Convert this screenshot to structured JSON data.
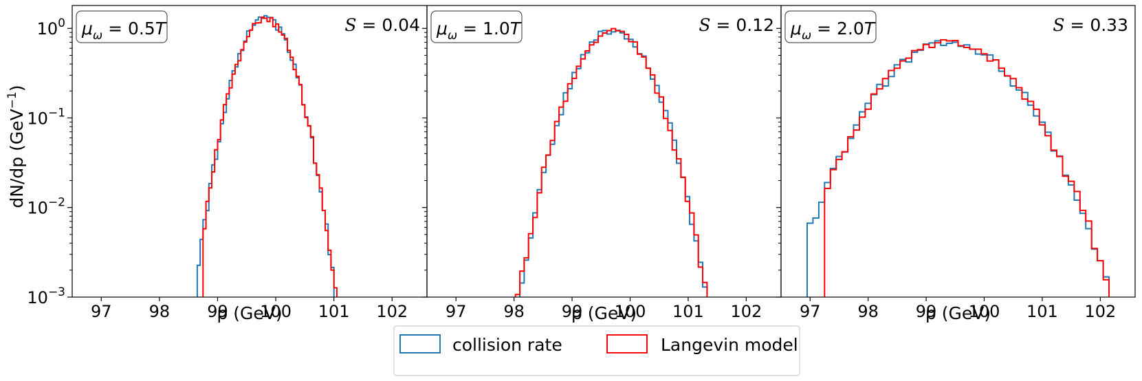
{
  "colors": {
    "collision": "#1f77b4",
    "langevin": "#ff0000",
    "frame": "#000000"
  },
  "shared_ylabel": "dN/dp (GeV",
  "shared_ylabel_sup": "−1",
  "shared_ylabel_close": ")",
  "legend": {
    "placement": "bottom-center",
    "items": [
      {
        "label": "collision rate",
        "color": "#1f77b4"
      },
      {
        "label": "Langevin model",
        "color": "#ff0000"
      }
    ]
  },
  "chart_data": [
    {
      "type": "histogram",
      "panel_label": "μω = 0.5T",
      "label_symbol": "μ",
      "label_sub": "ω",
      "label_value": " = 0.5",
      "label_unit": "T",
      "stat_symbol": "𝒮",
      "stat_value": " = 0.04",
      "xlabel": "p (GeV)",
      "ylabel": "dN/dp (GeV⁻¹)",
      "yscale": "log",
      "xlim": [
        96.5,
        102.6
      ],
      "ylim": [
        0.001,
        1.8
      ],
      "xticks": [
        "97",
        "98",
        "99",
        "100",
        "101",
        "102"
      ],
      "yticks": [
        "10^0",
        "10^-1",
        "10^-2",
        "10^-3"
      ],
      "center": 99.82,
      "sigma": 0.32,
      "peak": 1.3,
      "bin_width": 0.05,
      "x_range": [
        98.6,
        101.1
      ],
      "series": [
        {
          "name": "collision rate",
          "min_x": 98.63
        },
        {
          "name": "Langevin model",
          "min_x": 98.73
        }
      ]
    },
    {
      "type": "histogram",
      "panel_label": "μω = 1.0T",
      "label_symbol": "μ",
      "label_sub": "ω",
      "label_value": " = 1.0",
      "label_unit": "T",
      "stat_symbol": "𝒮",
      "stat_value": " = 0.12",
      "xlabel": "p (GeV)",
      "ylabel": "dN/dp (GeV⁻¹)",
      "yscale": "log",
      "xlim": [
        96.5,
        102.6
      ],
      "ylim": [
        0.001,
        1.8
      ],
      "xticks": [
        "97",
        "98",
        "99",
        "100",
        "101",
        "102"
      ],
      "yticks": [
        "10^0",
        "10^-1",
        "10^-2",
        "10^-3"
      ],
      "center": 99.7,
      "sigma": 0.44,
      "peak": 0.95,
      "bin_width": 0.075,
      "x_range": [
        97.8,
        101.4
      ],
      "series": [
        {
          "name": "collision rate",
          "min_x": 97.85
        },
        {
          "name": "Langevin model",
          "min_x": 97.95
        }
      ]
    },
    {
      "type": "histogram",
      "panel_label": "μω = 2.0T",
      "label_symbol": "μ",
      "label_sub": "ω",
      "label_value": " = 2.0",
      "label_unit": "T",
      "stat_symbol": "𝒮",
      "stat_value": " = 0.33",
      "xlabel": "p (GeV)",
      "ylabel": "dN/dp (GeV⁻¹)",
      "yscale": "log",
      "xlim": [
        96.5,
        102.6
      ],
      "ylim": [
        0.001,
        1.8
      ],
      "xticks": [
        "97",
        "98",
        "99",
        "100",
        "101",
        "102"
      ],
      "yticks": [
        "10^0",
        "10^-1",
        "10^-2",
        "10^-3"
      ],
      "center": 99.4,
      "sigma": 0.78,
      "peak": 0.7,
      "bin_width": 0.1,
      "x_range": [
        96.95,
        102.1
      ],
      "series": [
        {
          "name": "collision rate",
          "min_x": 96.95
        },
        {
          "name": "Langevin model",
          "min_x": 97.25
        }
      ]
    }
  ]
}
